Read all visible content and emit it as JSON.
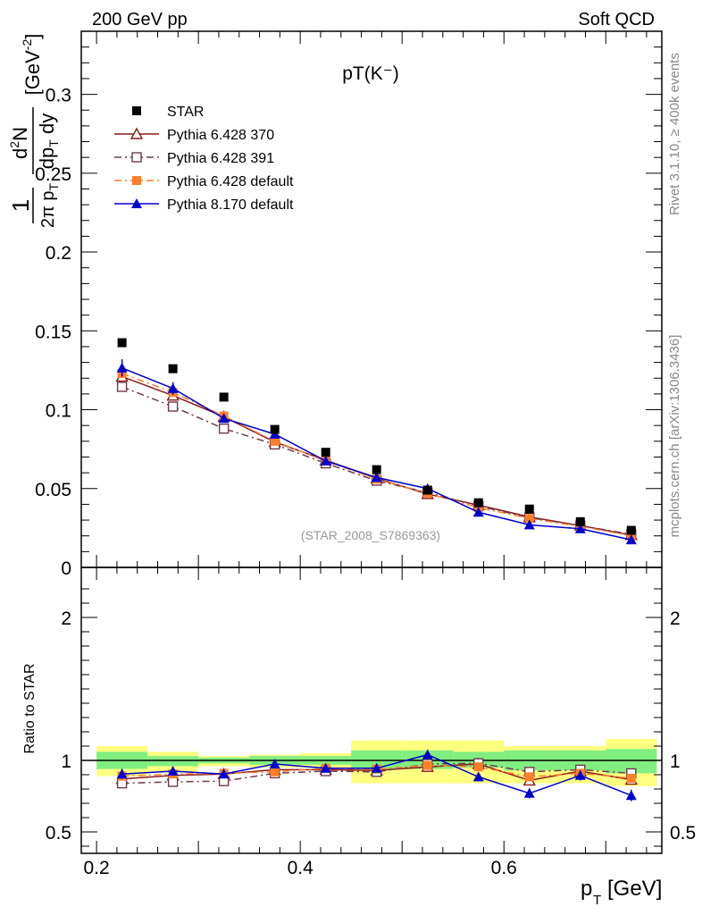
{
  "header": {
    "left": "200 GeV pp",
    "right": "Soft QCD"
  },
  "side_labels": {
    "rivet": "Rivet 3.1.10, ≥ 400k events",
    "mcplots": "mcplots.cern.ch [arXiv:1306.3436]"
  },
  "chart_data": [
    {
      "type": "scatter",
      "title": "pT(K⁻)",
      "ylabel": "1/(2π p_T) d²N/(dp_T dy) [GeV⁻²]",
      "ylim": [
        0,
        0.34
      ],
      "yticks": [
        0,
        0.05,
        0.1,
        0.15,
        0.2,
        0.25,
        0.3
      ],
      "ytick_labels": [
        "0",
        "0.05",
        "0.1",
        "0.15",
        "0.2",
        "0.25",
        "0.3"
      ],
      "xlim": [
        0.185,
        0.755
      ],
      "watermark": "(STAR_2008_S7869363)",
      "legend_position": "top-left",
      "x": [
        0.225,
        0.275,
        0.325,
        0.375,
        0.425,
        0.475,
        0.525,
        0.575,
        0.625,
        0.675,
        0.725
      ],
      "series": [
        {
          "name": "STAR",
          "color": "#000000",
          "style": "data",
          "marker": "square",
          "values": [
            0.1425,
            0.126,
            0.108,
            0.0875,
            0.073,
            0.062,
            0.049,
            0.041,
            0.037,
            0.029,
            0.0235
          ]
        },
        {
          "name": "Pythia 6.428 370",
          "color": "#8b1a1a",
          "style": "solid",
          "marker": "triangle-open",
          "values": [
            0.121,
            0.109,
            0.0955,
            0.0795,
            0.068,
            0.0565,
            0.0465,
            0.0395,
            0.032,
            0.0265,
            0.0205
          ]
        },
        {
          "name": "Pythia 6.428 391",
          "color": "#6e3a4a",
          "style": "dashdot",
          "marker": "square-open",
          "values": [
            0.1145,
            0.102,
            0.088,
            0.078,
            0.066,
            0.055,
            0.0475,
            0.039,
            0.0315,
            0.0265,
            0.021
          ]
        },
        {
          "name": "Pythia 6.428 default",
          "color": "#ff7f2a",
          "style": "dashdot",
          "marker": "square",
          "values": [
            0.123,
            0.111,
            0.096,
            0.08,
            0.0675,
            0.056,
            0.047,
            0.038,
            0.031,
            0.026,
            0.02
          ]
        },
        {
          "name": "Pythia 8.170 default",
          "color": "#0000cc",
          "style": "solid",
          "marker": "triangle",
          "values": [
            0.1265,
            0.1135,
            0.0945,
            0.0845,
            0.0675,
            0.057,
            0.05,
            0.035,
            0.027,
            0.0245,
            0.0175
          ],
          "errors": [
            0.0055,
            0.004,
            0.0025,
            0.002,
            0.0015,
            0.0015,
            0.0015,
            0.0012,
            0.001,
            0.001,
            0.001
          ]
        }
      ]
    },
    {
      "type": "line",
      "ylabel": "Ratio to STAR",
      "xlabel": "p_T [GeV]",
      "xlim": [
        0.185,
        0.755
      ],
      "ylim": [
        0.35,
        2.35
      ],
      "xticks": [
        0.2,
        0.4,
        0.6
      ],
      "xtick_labels": [
        "0.2",
        "0.4",
        "0.6"
      ],
      "yticks": [
        0.5,
        1,
        2
      ],
      "ytick_labels": [
        "0.5",
        "1",
        "2"
      ],
      "bands": {
        "bins": [
          [
            0.2,
            0.25
          ],
          [
            0.25,
            0.3
          ],
          [
            0.3,
            0.35
          ],
          [
            0.35,
            0.4
          ],
          [
            0.4,
            0.45
          ],
          [
            0.45,
            0.5
          ],
          [
            0.5,
            0.55
          ],
          [
            0.55,
            0.6
          ],
          [
            0.6,
            0.65
          ],
          [
            0.65,
            0.7
          ],
          [
            0.7,
            0.75
          ]
        ],
        "yellow": [
          [
            0.89,
            1.1
          ],
          [
            0.92,
            1.06
          ],
          [
            0.96,
            1.03
          ],
          [
            0.95,
            1.04
          ],
          [
            0.95,
            1.05
          ],
          [
            0.84,
            1.14
          ],
          [
            0.84,
            1.14
          ],
          [
            0.84,
            1.14
          ],
          [
            0.84,
            1.1
          ],
          [
            0.84,
            1.1
          ],
          [
            0.82,
            1.15
          ]
        ],
        "green": [
          [
            0.94,
            1.06
          ],
          [
            0.96,
            1.03
          ],
          [
            0.98,
            1.02
          ],
          [
            0.97,
            1.03
          ],
          [
            0.97,
            1.03
          ],
          [
            0.94,
            1.07
          ],
          [
            0.94,
            1.07
          ],
          [
            0.95,
            1.06
          ],
          [
            0.93,
            1.07
          ],
          [
            0.93,
            1.07
          ],
          [
            0.91,
            1.08
          ]
        ],
        "yellow_color": "#ffff80",
        "green_color": "#80ee80"
      },
      "x": [
        0.225,
        0.275,
        0.325,
        0.375,
        0.425,
        0.475,
        0.525,
        0.575,
        0.625,
        0.675,
        0.725
      ],
      "series": [
        {
          "name": "Pythia 6.428 370",
          "color": "#8b1a1a",
          "style": "solid",
          "marker": "triangle-open",
          "values": [
            0.87,
            0.895,
            0.905,
            0.935,
            0.935,
            0.93,
            0.955,
            0.975,
            0.86,
            0.925,
            0.865
          ]
        },
        {
          "name": "Pythia 6.428 391",
          "color": "#6e3a4a",
          "style": "dashdot",
          "marker": "square-open",
          "values": [
            0.84,
            0.85,
            0.855,
            0.91,
            0.925,
            0.92,
            0.975,
            0.98,
            0.92,
            0.935,
            0.91
          ]
        },
        {
          "name": "Pythia 6.428 default",
          "color": "#ff7f2a",
          "style": "dashdot",
          "marker": "square",
          "values": [
            0.89,
            0.905,
            0.91,
            0.92,
            0.945,
            0.94,
            0.965,
            0.955,
            0.885,
            0.91,
            0.875
          ]
        },
        {
          "name": "Pythia 8.170 default",
          "color": "#0000cc",
          "style": "solid",
          "marker": "triangle",
          "values": [
            0.905,
            0.925,
            0.905,
            0.975,
            0.945,
            0.945,
            1.04,
            0.885,
            0.77,
            0.895,
            0.755
          ],
          "errors": [
            0.035,
            0.03,
            0.025,
            0.025,
            0.025,
            0.025,
            0.035,
            0.03,
            0.035,
            0.035,
            0.04
          ]
        }
      ]
    }
  ]
}
